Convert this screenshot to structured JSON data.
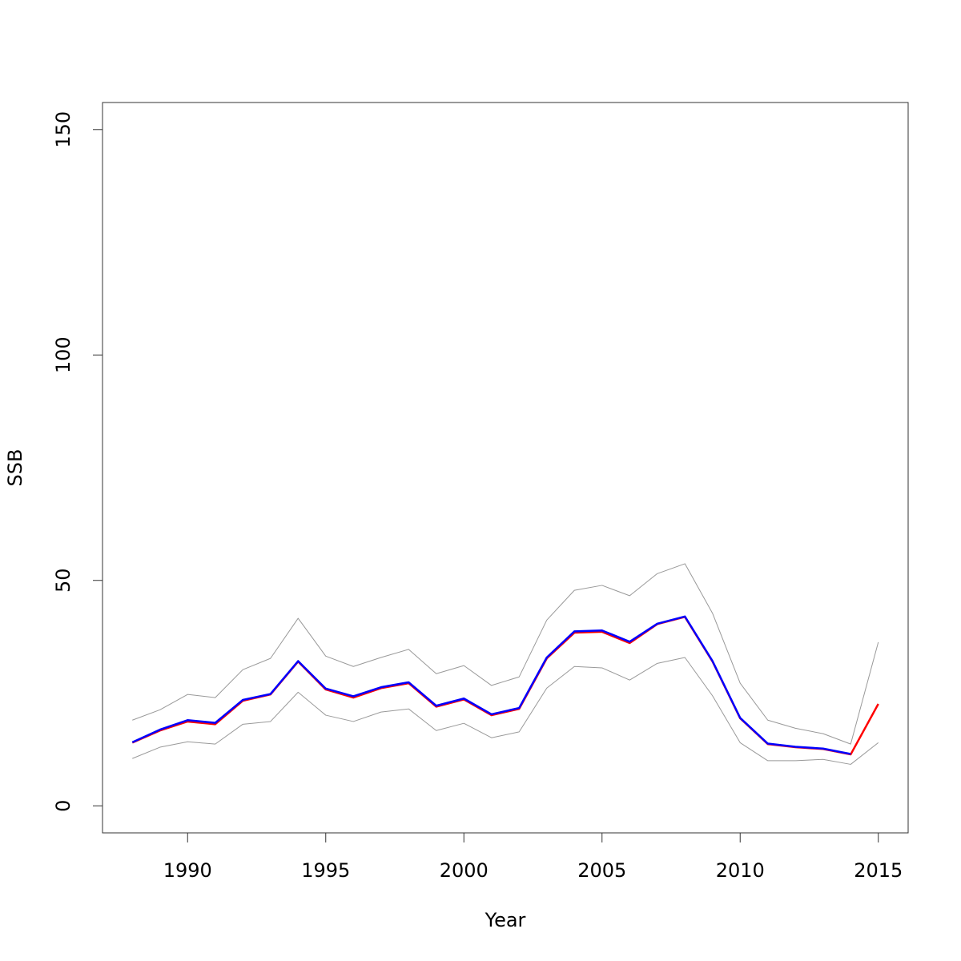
{
  "chart_data": {
    "type": "line",
    "x_label": "Year",
    "y_label": "SSB",
    "x": [
      1988,
      1989,
      1990,
      1991,
      1992,
      1993,
      1994,
      1995,
      1996,
      1997,
      1998,
      1999,
      2000,
      2001,
      2002,
      2003,
      2004,
      2005,
      2006,
      2007,
      2008,
      2009,
      2010,
      2011,
      2012,
      2013,
      2014,
      2015
    ],
    "series": [
      {
        "color": "#999999",
        "values": [
          19.0,
          21.3,
          24.7,
          24.0,
          30.2,
          32.7,
          41.6,
          33.2,
          30.9,
          32.9,
          34.7,
          29.3,
          31.1,
          26.7,
          28.6,
          41.2,
          47.8,
          48.9,
          46.6,
          51.5,
          53.7,
          42.7,
          27.2,
          19.0,
          17.2,
          16.0,
          13.7,
          36.3
        ]
      },
      {
        "color": "#999999",
        "values": [
          10.5,
          13.0,
          14.2,
          13.7,
          18.1,
          18.7,
          25.2,
          20.1,
          18.7,
          20.8,
          21.5,
          16.7,
          18.3,
          15.1,
          16.4,
          26.1,
          30.9,
          30.6,
          27.9,
          31.6,
          32.9,
          24.4,
          14.0,
          10.0,
          10.0,
          10.3,
          9.2,
          14.0
        ]
      },
      {
        "color": "#ff0000",
        "values": [
          14.0,
          16.7,
          18.7,
          18.1,
          23.3,
          24.7,
          32.0,
          25.8,
          24.0,
          26.1,
          27.2,
          22.0,
          23.6,
          20.1,
          21.5,
          32.7,
          38.4,
          38.6,
          36.1,
          40.3,
          41.9,
          32.0,
          19.4,
          13.7,
          13.0,
          12.6,
          11.4,
          22.6
        ]
      },
      {
        "color": "#0000ff",
        "values": [
          14.1,
          16.9,
          19.0,
          18.4,
          23.5,
          24.8,
          32.1,
          26.0,
          24.3,
          26.3,
          27.4,
          22.2,
          23.8,
          20.3,
          21.7,
          32.9,
          38.7,
          38.9,
          36.4,
          40.4,
          42.0,
          32.1,
          19.5,
          13.8,
          13.1,
          12.7,
          11.5,
          null
        ]
      }
    ],
    "xlim": [
      1986.92,
      2016.08
    ],
    "xticks": [
      1990,
      1995,
      2000,
      2005,
      2010,
      2015
    ],
    "ylim": [
      -6,
      156
    ],
    "yticks": [
      0,
      50,
      100,
      150
    ]
  }
}
